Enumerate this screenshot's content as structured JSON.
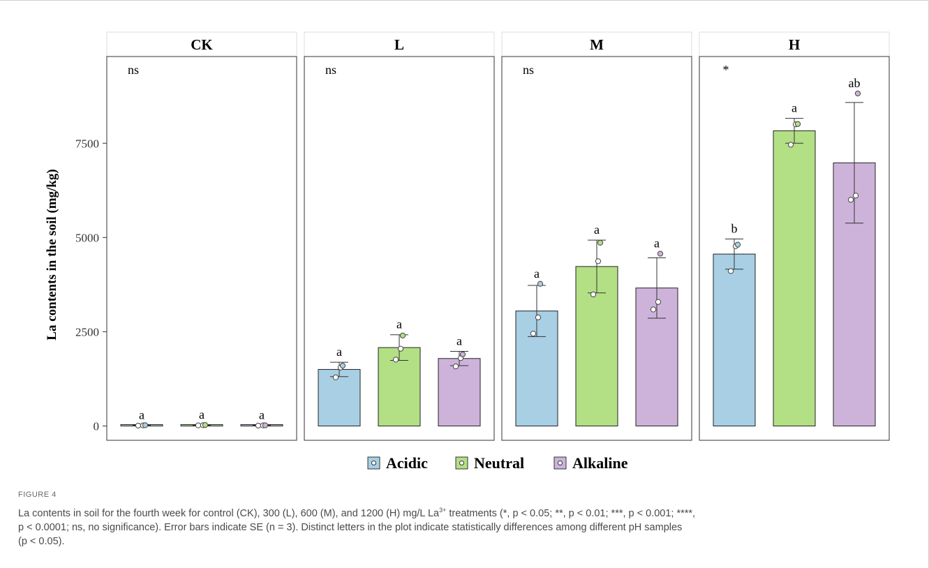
{
  "chart_data": {
    "type": "bar",
    "ylabel": "La contents in the soil (mg/kg)",
    "ylim": [
      -380,
      9800
    ],
    "yticks": [
      0,
      2500,
      5000,
      7500
    ],
    "series_names": [
      "Acidic",
      "Neutral",
      "Alkaline"
    ],
    "colors": {
      "Acidic": "#a8cfe4",
      "Neutral": "#b3df85",
      "Alkaline": "#cdb3d9"
    },
    "panels": [
      {
        "title": "CK",
        "significance": "ns",
        "bars": [
          {
            "group": "Acidic",
            "value": 15,
            "se": 5,
            "letter": "a",
            "points": [
              10,
              15,
              20
            ]
          },
          {
            "group": "Neutral",
            "value": 20,
            "se": 6,
            "letter": "a",
            "points": [
              15,
              20,
              25
            ]
          },
          {
            "group": "Alkaline",
            "value": 15,
            "se": 5,
            "letter": "a",
            "points": [
              10,
              15,
              18
            ]
          }
        ]
      },
      {
        "title": "L",
        "significance": "ns",
        "bars": [
          {
            "group": "Acidic",
            "value": 1500,
            "se": 190,
            "letter": "a",
            "points": [
              1290,
              1550,
              1600
            ]
          },
          {
            "group": "Neutral",
            "value": 2080,
            "se": 340,
            "letter": "a",
            "points": [
              1760,
              2050,
              2400
            ]
          },
          {
            "group": "Alkaline",
            "value": 1790,
            "se": 190,
            "letter": "a",
            "points": [
              1580,
              1800,
              1900
            ]
          }
        ]
      },
      {
        "title": "M",
        "significance": "ns",
        "bars": [
          {
            "group": "Acidic",
            "value": 3050,
            "se": 680,
            "letter": "a",
            "points": [
              2450,
              2880,
              3770
            ]
          },
          {
            "group": "Neutral",
            "value": 4230,
            "se": 700,
            "letter": "a",
            "points": [
              3490,
              4370,
              4860
            ]
          },
          {
            "group": "Alkaline",
            "value": 3660,
            "se": 800,
            "letter": "a",
            "points": [
              3090,
              3290,
              4570
            ]
          }
        ]
      },
      {
        "title": "H",
        "significance": "*",
        "bars": [
          {
            "group": "Acidic",
            "value": 4560,
            "se": 400,
            "letter": "b",
            "points": [
              4110,
              4770,
              4810
            ]
          },
          {
            "group": "Neutral",
            "value": 7830,
            "se": 330,
            "letter": "a",
            "points": [
              7460,
              8000,
              8010
            ]
          },
          {
            "group": "Alkaline",
            "value": 6980,
            "se": 1600,
            "letter": "ab",
            "points": [
              6000,
              6110,
              8820
            ]
          }
        ]
      }
    ],
    "legend": {
      "placement": "bottom"
    }
  },
  "caption": {
    "label": "FIGURE 4",
    "text_line1_a": "La contents in soil for the fourth week for control (CK), 300 (L), 600 (M), and 1200 (H) mg/L La",
    "text_line1_sup": "3+",
    "text_line1_b": " treatments (*, ",
    "text_rest_1": "p < 0.05; **, p < 0.01; ***, p < 0.001; ****,",
    "text_rest_2": "p < 0.0001; ns, no significance). Error bars indicate SE (n = 3). Distinct letters in the plot indicate statistically differences among different pH samples",
    "text_rest_3": "(p < 0.05)."
  }
}
